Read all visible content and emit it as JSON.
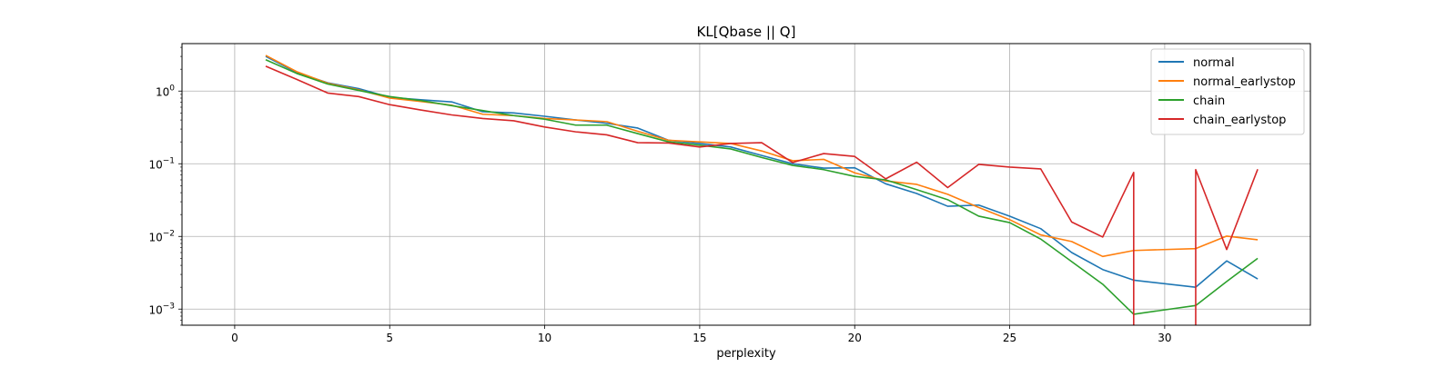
{
  "chart_data": {
    "type": "line",
    "title": "KL[Qbase || Q]",
    "xlabel": "perplexity",
    "ylabel": "",
    "xlim": [
      -1.7,
      34.7
    ],
    "ylim": [
      0.0006,
      4.5
    ],
    "yscale": "log",
    "grid": true,
    "legend_position": "top-right",
    "xticks": [
      0,
      5,
      10,
      15,
      20,
      25,
      30
    ],
    "xtick_labels": [
      "0",
      "5",
      "10",
      "15",
      "20",
      "25",
      "30"
    ],
    "yticks": [
      0.001,
      0.01,
      0.1,
      1
    ],
    "ytick_labels": [
      {
        "base": "10",
        "exp": "−3"
      },
      {
        "base": "10",
        "exp": "−2"
      },
      {
        "base": "10",
        "exp": "−1"
      },
      {
        "base": "10",
        "exp": "0"
      }
    ],
    "series": [
      {
        "name": "normal",
        "color": "#1f77b4",
        "points": [
          [
            1,
            3.0
          ],
          [
            2,
            1.8
          ],
          [
            3,
            1.3
          ],
          [
            4,
            1.08
          ],
          [
            5,
            0.82
          ],
          [
            6,
            0.76
          ],
          [
            7,
            0.71
          ],
          [
            8,
            0.52
          ],
          [
            9,
            0.5
          ],
          [
            10,
            0.45
          ],
          [
            11,
            0.4
          ],
          [
            12,
            0.36
          ],
          [
            13,
            0.31
          ],
          [
            14,
            0.21
          ],
          [
            15,
            0.19
          ],
          [
            16,
            0.17
          ],
          [
            17,
            0.13
          ],
          [
            18,
            0.1
          ],
          [
            19,
            0.087
          ],
          [
            20,
            0.088
          ],
          [
            21,
            0.053
          ],
          [
            22,
            0.039
          ],
          [
            23,
            0.026
          ],
          [
            24,
            0.027
          ],
          [
            25,
            0.019
          ],
          [
            26,
            0.0128
          ],
          [
            27,
            0.006
          ],
          [
            28,
            0.0035
          ],
          [
            29,
            0.0025
          ],
          [
            31,
            0.002
          ],
          [
            32,
            0.0046
          ],
          [
            33,
            0.0026
          ]
        ]
      },
      {
        "name": "normal_earlystop",
        "color": "#ff7f0e",
        "points": [
          [
            1,
            3.1
          ],
          [
            2,
            1.85
          ],
          [
            3,
            1.28
          ],
          [
            4,
            1.04
          ],
          [
            5,
            0.8
          ],
          [
            6,
            0.72
          ],
          [
            7,
            0.64
          ],
          [
            8,
            0.48
          ],
          [
            9,
            0.46
          ],
          [
            10,
            0.42
          ],
          [
            11,
            0.4
          ],
          [
            12,
            0.38
          ],
          [
            13,
            0.28
          ],
          [
            14,
            0.21
          ],
          [
            15,
            0.2
          ],
          [
            16,
            0.19
          ],
          [
            17,
            0.15
          ],
          [
            18,
            0.11
          ],
          [
            19,
            0.115
          ],
          [
            20,
            0.075
          ],
          [
            21,
            0.058
          ],
          [
            22,
            0.052
          ],
          [
            23,
            0.038
          ],
          [
            24,
            0.025
          ],
          [
            25,
            0.017
          ],
          [
            26,
            0.0105
          ],
          [
            27,
            0.0085
          ],
          [
            28,
            0.0053
          ],
          [
            29,
            0.0064
          ],
          [
            31,
            0.0068
          ],
          [
            32,
            0.0101
          ],
          [
            33,
            0.009
          ]
        ]
      },
      {
        "name": "chain",
        "color": "#2ca02c",
        "points": [
          [
            1,
            2.7
          ],
          [
            2,
            1.75
          ],
          [
            3,
            1.25
          ],
          [
            4,
            1.02
          ],
          [
            5,
            0.84
          ],
          [
            6,
            0.74
          ],
          [
            7,
            0.63
          ],
          [
            8,
            0.54
          ],
          [
            9,
            0.46
          ],
          [
            10,
            0.41
          ],
          [
            11,
            0.34
          ],
          [
            12,
            0.34
          ],
          [
            13,
            0.26
          ],
          [
            14,
            0.2
          ],
          [
            15,
            0.18
          ],
          [
            16,
            0.16
          ],
          [
            17,
            0.122
          ],
          [
            18,
            0.095
          ],
          [
            19,
            0.083
          ],
          [
            20,
            0.067
          ],
          [
            21,
            0.06
          ],
          [
            22,
            0.044
          ],
          [
            23,
            0.032
          ],
          [
            24,
            0.019
          ],
          [
            25,
            0.0155
          ],
          [
            26,
            0.0092
          ],
          [
            27,
            0.0045
          ],
          [
            28,
            0.0022
          ],
          [
            29,
            0.00085
          ],
          [
            31,
            0.00112
          ],
          [
            32,
            0.0024
          ],
          [
            33,
            0.005
          ]
        ]
      },
      {
        "name": "chain_earlystop",
        "color": "#d62728",
        "points": [
          [
            1,
            2.2
          ],
          [
            2,
            1.45
          ],
          [
            3,
            0.94
          ],
          [
            4,
            0.84
          ],
          [
            5,
            0.65
          ],
          [
            6,
            0.55
          ],
          [
            7,
            0.47
          ],
          [
            8,
            0.42
          ],
          [
            9,
            0.39
          ],
          [
            10,
            0.32
          ],
          [
            11,
            0.275
          ],
          [
            12,
            0.25
          ],
          [
            13,
            0.195
          ],
          [
            14,
            0.193
          ],
          [
            15,
            0.17
          ],
          [
            16,
            0.19
          ],
          [
            17,
            0.195
          ],
          [
            18,
            0.104
          ],
          [
            19,
            0.138
          ],
          [
            20,
            0.126
          ],
          [
            21,
            0.062
          ],
          [
            22,
            0.105
          ],
          [
            23,
            0.047
          ],
          [
            24,
            0.098
          ],
          [
            25,
            0.09
          ],
          [
            26,
            0.085
          ],
          [
            27,
            0.0158
          ],
          [
            28,
            0.0098
          ],
          [
            29,
            0.076
          ],
          [
            29,
            0.0001
          ],
          [
            31,
            0.0001
          ],
          [
            31,
            0.083
          ],
          [
            32,
            0.0066
          ],
          [
            33,
            0.084
          ]
        ]
      }
    ]
  }
}
